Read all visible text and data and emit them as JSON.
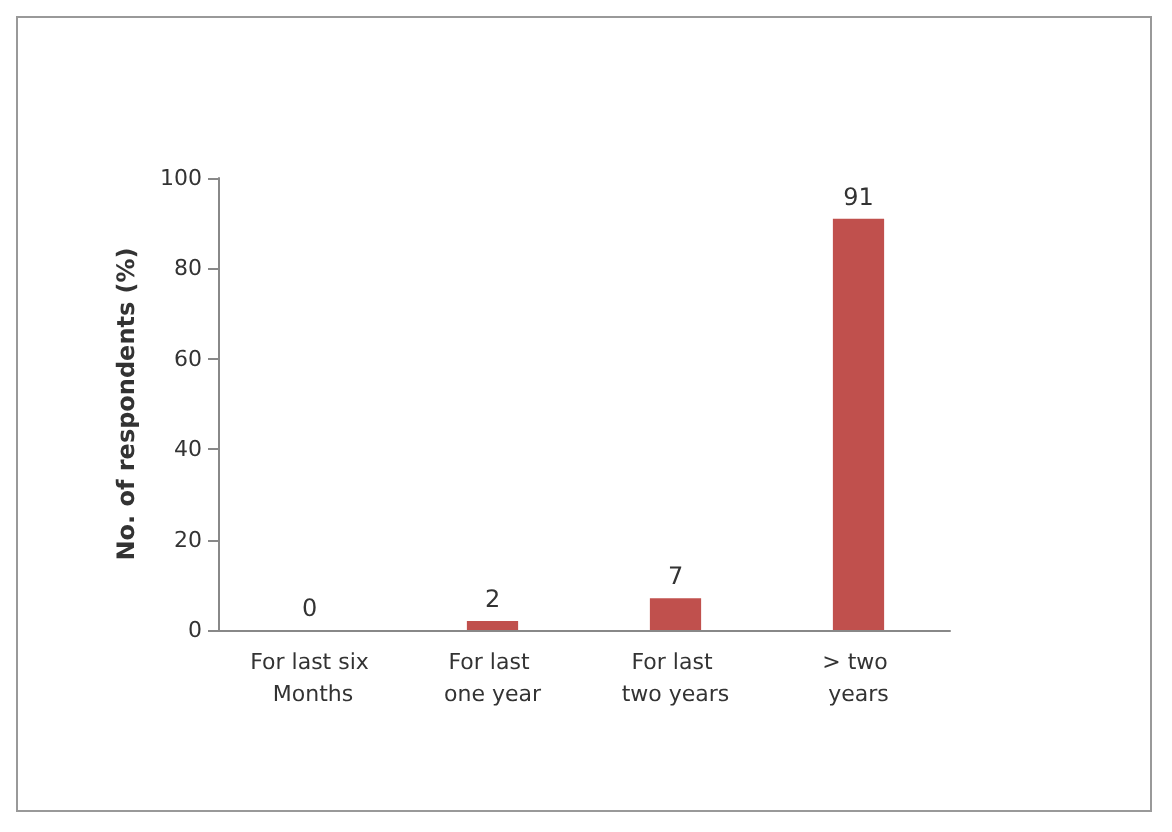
{
  "chart_data": {
    "type": "bar",
    "ylabel": "No. of respondents (%)",
    "categories": [
      "For last six Months",
      "For last one year",
      "For last two years",
      "> two years"
    ],
    "values": [
      0,
      2,
      7,
      91
    ],
    "color": "#c0504d",
    "ylim": [
      0,
      100
    ],
    "yticks": [
      0,
      20,
      40,
      60,
      80,
      100
    ],
    "grid": false,
    "data_labels": true
  }
}
